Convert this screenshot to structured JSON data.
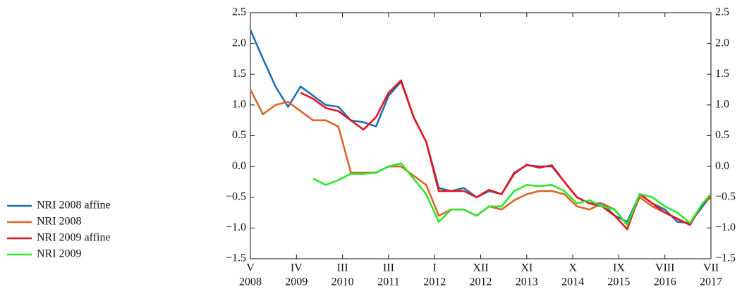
{
  "chart_data": {
    "type": "line",
    "x": [
      0,
      3,
      6,
      9,
      12,
      15,
      18,
      21,
      24,
      27,
      30,
      33,
      36,
      39,
      42,
      45,
      48,
      51,
      54,
      57,
      60,
      63,
      66,
      69,
      72,
      75,
      78,
      81,
      84,
      87,
      90,
      93,
      96,
      99,
      102,
      105,
      108,
      110
    ],
    "xlim": [
      0,
      110
    ],
    "xticks": [
      {
        "value": 0,
        "label": [
          "V",
          "2008"
        ]
      },
      {
        "value": 11,
        "label": [
          "IV",
          "2009"
        ]
      },
      {
        "value": 22,
        "label": [
          "III",
          "2010"
        ]
      },
      {
        "value": 33,
        "label": [
          "III",
          "2011"
        ]
      },
      {
        "value": 44,
        "label": [
          "I",
          "2012"
        ]
      },
      {
        "value": 55,
        "label": [
          "XII",
          "2012"
        ]
      },
      {
        "value": 66,
        "label": [
          "XI",
          "2013"
        ]
      },
      {
        "value": 77,
        "label": [
          "X",
          "2014"
        ]
      },
      {
        "value": 88,
        "label": [
          "IX",
          "2015"
        ]
      },
      {
        "value": 99,
        "label": [
          "VIII",
          "2016"
        ]
      },
      {
        "value": 110,
        "label": [
          "VII",
          "2017"
        ]
      }
    ],
    "ylim": [
      -1.5,
      2.5
    ],
    "yticks": [
      {
        "value": -1.5,
        "label": "−1.5"
      },
      {
        "value": -1,
        "label": "−1.0"
      },
      {
        "value": -0.5,
        "label": "−0.5"
      },
      {
        "value": 0,
        "label": "0.0"
      },
      0.5,
      {
        "value": 1,
        "label": "1.0"
      },
      1.5,
      {
        "value": 2,
        "label": "2.0"
      },
      2.5
    ],
    "mirror_y_axis": true,
    "legend": "left",
    "series": [
      {
        "name": "NRI 2008 affine",
        "color": "#1f6fb4",
        "values": [
          2.22,
          1.75,
          1.3,
          0.97,
          1.3,
          1.15,
          1.0,
          0.97,
          0.75,
          0.72,
          0.65,
          1.15,
          1.38,
          0.8,
          0.4,
          -0.35,
          -0.4,
          -0.35,
          -0.5,
          -0.4,
          -0.45,
          -0.1,
          0.02,
          0.0,
          0.0,
          -0.25,
          -0.5,
          -0.6,
          -0.6,
          -0.8,
          -0.9,
          -0.45,
          -0.6,
          -0.7,
          -0.9,
          -0.92,
          -0.65,
          -0.47
        ]
      },
      {
        "name": "NRI 2008",
        "color": "#d9662a",
        "values": [
          1.25,
          0.85,
          1.0,
          1.05,
          0.9,
          0.75,
          0.75,
          0.65,
          -0.1,
          -0.1,
          -0.1,
          0.0,
          0.0,
          -0.15,
          -0.3,
          -0.8,
          -0.7,
          -0.7,
          -0.8,
          -0.65,
          -0.7,
          -0.55,
          -0.45,
          -0.4,
          -0.4,
          -0.45,
          -0.65,
          -0.7,
          -0.6,
          -0.7,
          -0.95,
          -0.5,
          -0.65,
          -0.75,
          -0.85,
          -0.95,
          -0.6,
          -0.5
        ]
      },
      {
        "name": "NRI 2009 affine",
        "color": "#e8141b",
        "values": [
          null,
          null,
          null,
          null,
          1.2,
          1.1,
          0.95,
          0.9,
          0.75,
          0.6,
          0.8,
          1.2,
          1.4,
          0.8,
          0.4,
          -0.4,
          -0.4,
          -0.4,
          -0.5,
          -0.38,
          -0.45,
          -0.12,
          0.03,
          -0.02,
          0.02,
          -0.25,
          -0.5,
          -0.6,
          -0.65,
          -0.8,
          -1.02,
          -0.45,
          -0.6,
          -0.75,
          -0.85,
          -0.95,
          -0.6,
          -0.48
        ]
      },
      {
        "name": "NRI 2009",
        "color": "#2ee62a",
        "values": [
          null,
          null,
          null,
          null,
          null,
          -0.2,
          -0.3,
          -0.22,
          -0.12,
          -0.12,
          -0.1,
          0.0,
          0.05,
          -0.2,
          -0.45,
          -0.9,
          -0.7,
          -0.7,
          -0.8,
          -0.65,
          -0.65,
          -0.4,
          -0.3,
          -0.32,
          -0.3,
          -0.4,
          -0.6,
          -0.55,
          -0.65,
          -0.7,
          -0.95,
          -0.45,
          -0.5,
          -0.65,
          -0.75,
          -0.92,
          -0.6,
          -0.45
        ]
      }
    ]
  }
}
